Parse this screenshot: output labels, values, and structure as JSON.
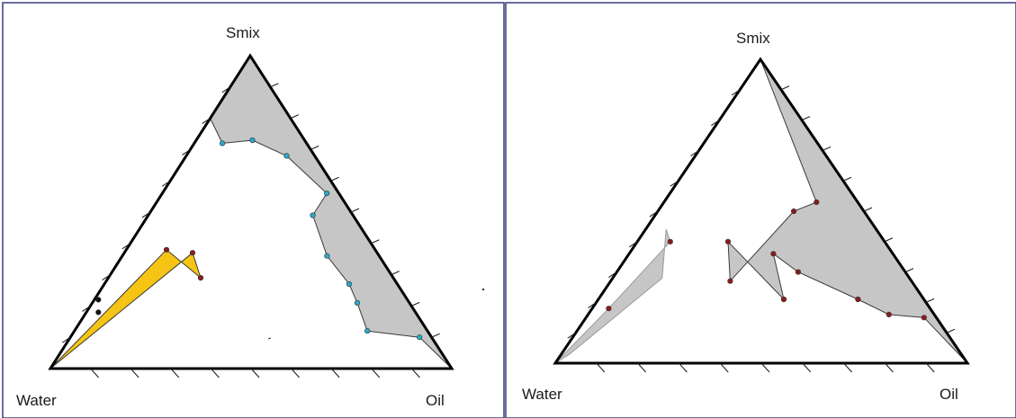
{
  "panels": [
    {
      "id": "left",
      "vertex_labels": {
        "top": "Smix",
        "left": "Water",
        "right": "Oil"
      },
      "regions": [
        {
          "name": "gray-region",
          "fill": "#c6c6c6",
          "stroke": "#3a3a3a",
          "points_wos": [
            [
              0.21,
              0.07,
              0.72
            ],
            [
              0.13,
              0.14,
              0.73
            ],
            [
              0.07,
              0.25,
              0.68
            ],
            [
              0.03,
              0.41,
              0.56
            ],
            [
              0.1,
              0.41,
              0.49
            ],
            [
              0.13,
              0.51,
              0.36
            ],
            [
              0.12,
              0.61,
              0.27
            ],
            [
              0.13,
              0.66,
              0.21
            ],
            [
              0.15,
              0.73,
              0.12
            ],
            [
              0.03,
              0.87,
              0.1
            ],
            [
              0.0,
              1.0,
              0.0
            ],
            [
              0.0,
              0.0,
              1.0
            ],
            [
              0.2,
              0.0,
              0.8
            ]
          ]
        },
        {
          "name": "yellow-region",
          "fill": "#f5c414",
          "stroke": "#3a3a3a",
          "points_wos": [
            [
              1.0,
              0.0,
              0.0
            ],
            [
              0.52,
              0.1,
              0.38
            ],
            [
              0.48,
              0.23,
              0.29
            ],
            [
              0.46,
              0.17,
              0.37
            ]
          ]
        }
      ],
      "markers": [
        {
          "wos": [
            0.21,
            0.07,
            0.72
          ],
          "color": "#2aa8c8"
        },
        {
          "wos": [
            0.13,
            0.14,
            0.73
          ],
          "color": "#2aa8c8"
        },
        {
          "wos": [
            0.07,
            0.25,
            0.68
          ],
          "color": "#2aa8c8"
        },
        {
          "wos": [
            0.03,
            0.41,
            0.56
          ],
          "color": "#2aa8c8"
        },
        {
          "wos": [
            0.1,
            0.41,
            0.49
          ],
          "color": "#2aa8c8"
        },
        {
          "wos": [
            0.13,
            0.51,
            0.36
          ],
          "color": "#2aa8c8"
        },
        {
          "wos": [
            0.12,
            0.61,
            0.27
          ],
          "color": "#2aa8c8"
        },
        {
          "wos": [
            0.13,
            0.66,
            0.21
          ],
          "color": "#2aa8c8"
        },
        {
          "wos": [
            0.15,
            0.73,
            0.12
          ],
          "color": "#2aa8c8"
        },
        {
          "wos": [
            0.03,
            0.87,
            0.1
          ],
          "color": "#2aa8c8"
        },
        {
          "wos": [
            0.52,
            0.1,
            0.38
          ],
          "color": "#8b1c1c"
        },
        {
          "wos": [
            0.48,
            0.23,
            0.29
          ],
          "color": "#8b1c1c"
        },
        {
          "wos": [
            0.46,
            0.17,
            0.37
          ],
          "color": "#8b1c1c"
        },
        {
          "wos": [
            0.77,
            0.01,
            0.22
          ],
          "color": "#111111"
        },
        {
          "wos": [
            0.79,
            0.03,
            0.18
          ],
          "color": "#111111"
        }
      ]
    },
    {
      "id": "right",
      "vertex_labels": {
        "top": "Smix",
        "left": "Water",
        "right": "Oil"
      },
      "regions": [
        {
          "name": "gray-region-left",
          "fill": "#c6c6c6",
          "stroke": "#9a9a9a",
          "points_wos": [
            [
              1.0,
              0.0,
              0.0
            ],
            [
              0.78,
              0.04,
              0.18
            ],
            [
              0.52,
              0.08,
              0.4
            ],
            [
              0.51,
              0.05,
              0.44
            ],
            [
              0.6,
              0.12,
              0.28
            ],
            [
              0.95,
              0.02,
              0.03
            ]
          ]
        },
        {
          "name": "gray-region-right",
          "fill": "#c6c6c6",
          "stroke": "#3a3a3a",
          "points_wos": [
            [
              0.1,
              0.37,
              0.53
            ],
            [
              0.17,
              0.33,
              0.5
            ],
            [
              0.44,
              0.29,
              0.27
            ],
            [
              0.38,
              0.22,
              0.4
            ],
            [
              0.34,
              0.45,
              0.21
            ],
            [
              0.29,
              0.35,
              0.36
            ],
            [
              0.26,
              0.44,
              0.3
            ],
            [
              0.16,
              0.63,
              0.21
            ],
            [
              0.11,
              0.73,
              0.16
            ],
            [
              0.03,
              0.82,
              0.15
            ],
            [
              0.0,
              1.0,
              0.0
            ],
            [
              0.0,
              0.0,
              1.0
            ]
          ]
        }
      ],
      "markers": [
        {
          "wos": [
            0.1,
            0.37,
            0.53
          ],
          "color": "#8b1c1c"
        },
        {
          "wos": [
            0.17,
            0.33,
            0.5
          ],
          "color": "#8b1c1c"
        },
        {
          "wos": [
            0.44,
            0.29,
            0.27
          ],
          "color": "#8b1c1c"
        },
        {
          "wos": [
            0.38,
            0.22,
            0.4
          ],
          "color": "#8b1c1c"
        },
        {
          "wos": [
            0.34,
            0.45,
            0.21
          ],
          "color": "#8b1c1c"
        },
        {
          "wos": [
            0.29,
            0.35,
            0.36
          ],
          "color": "#8b1c1c"
        },
        {
          "wos": [
            0.26,
            0.44,
            0.3
          ],
          "color": "#8b1c1c"
        },
        {
          "wos": [
            0.16,
            0.63,
            0.21
          ],
          "color": "#8b1c1c"
        },
        {
          "wos": [
            0.11,
            0.73,
            0.16
          ],
          "color": "#8b1c1c"
        },
        {
          "wos": [
            0.03,
            0.82,
            0.15
          ],
          "color": "#8b1c1c"
        },
        {
          "wos": [
            0.52,
            0.08,
            0.4
          ],
          "color": "#8b1c1c"
        },
        {
          "wos": [
            0.78,
            0.04,
            0.18
          ],
          "color": "#8b1c1c"
        }
      ]
    }
  ],
  "tick_divisions": 10
}
